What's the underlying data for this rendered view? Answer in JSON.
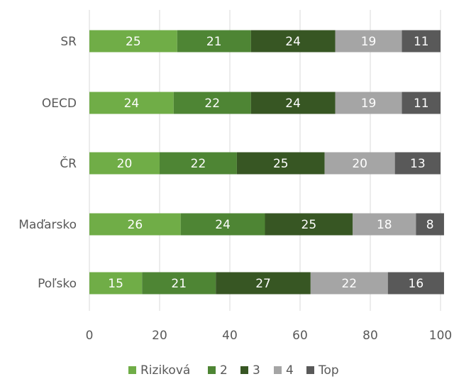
{
  "chart_data": {
    "type": "bar",
    "orientation": "horizontal",
    "stacked": true,
    "categories": [
      "SR",
      "OECD",
      "ČR",
      "Maďarsko",
      "Poľsko"
    ],
    "series": [
      {
        "name": "Riziková",
        "color": "#70ad47",
        "values": [
          25,
          24,
          20,
          26,
          15
        ]
      },
      {
        "name": "2",
        "color": "#4e8534",
        "values": [
          21,
          22,
          22,
          24,
          21
        ]
      },
      {
        "name": "3",
        "color": "#375623",
        "values": [
          24,
          24,
          25,
          25,
          27
        ]
      },
      {
        "name": "4",
        "color": "#a5a5a5",
        "values": [
          19,
          19,
          20,
          18,
          22
        ]
      },
      {
        "name": "Top",
        "color": "#595959",
        "values": [
          11,
          11,
          13,
          8,
          16
        ]
      }
    ],
    "xlim": [
      0,
      100
    ],
    "xticks": [
      "0",
      "20",
      "40",
      "60",
      "80",
      "100"
    ],
    "grid": true,
    "legend": "bottom",
    "title": "",
    "xlabel": "",
    "ylabel": ""
  }
}
